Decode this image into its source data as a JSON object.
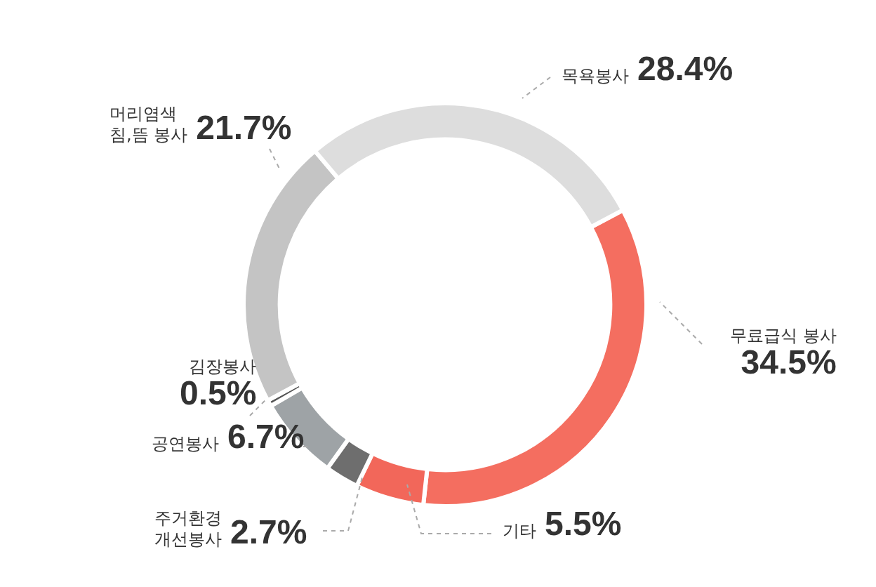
{
  "chart_data": {
    "type": "donut",
    "categories": [
      "무료급식 봉사",
      "기타",
      "주거환경\n개선봉사",
      "공연봉사",
      "김장봉사",
      "머리염색\n침,뜸 봉사",
      "목욕봉사"
    ],
    "values": [
      34.5,
      5.5,
      2.7,
      6.7,
      0.5,
      21.7,
      28.4
    ],
    "value_labels": [
      "34.5%",
      "5.5%",
      "2.7%",
      "6.7%",
      "0.5%",
      "21.7%",
      "28.4%"
    ],
    "colors": [
      "#f46e60",
      "#f2675a",
      "#6e6e6e",
      "#9ea3a6",
      "#555555",
      "#c4c4c4",
      "#dddddd"
    ],
    "legend": false
  }
}
